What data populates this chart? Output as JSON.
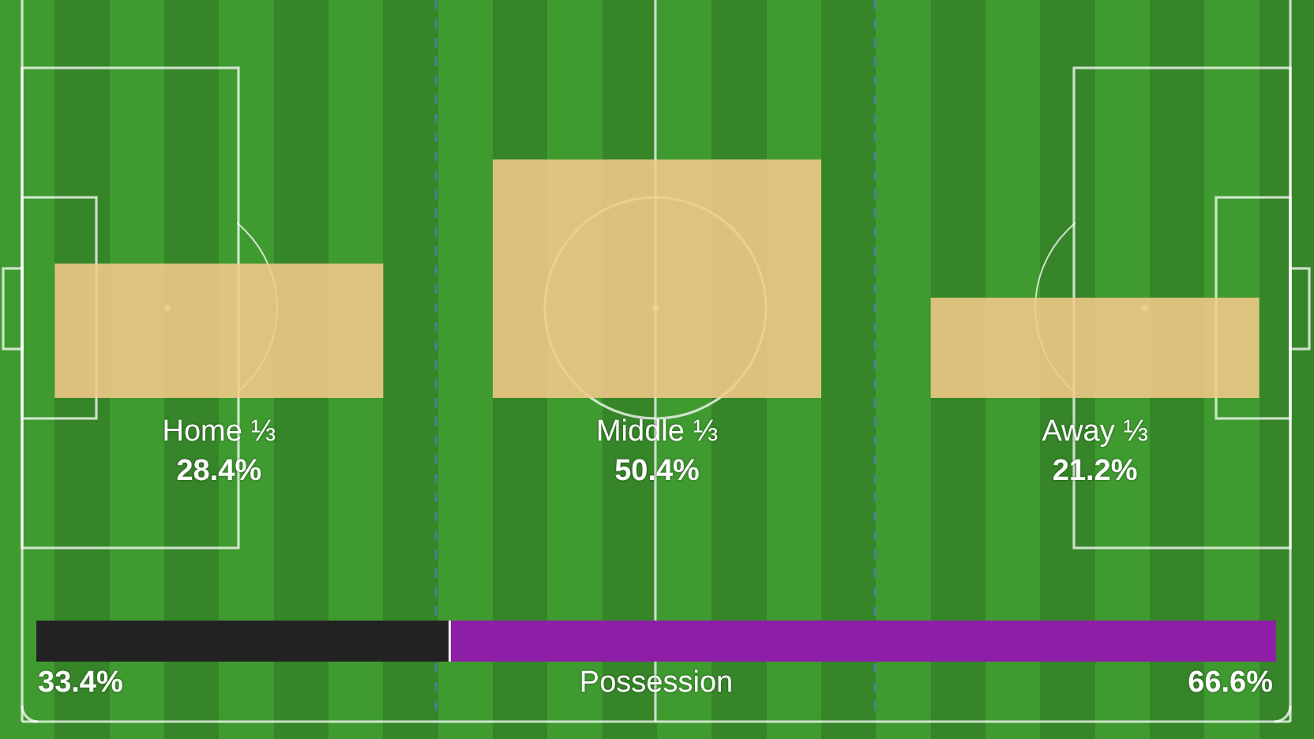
{
  "chart_data": [
    {
      "type": "bar",
      "categories": [
        "Home ⅓",
        "Middle ⅓",
        "Away ⅓"
      ],
      "values": [
        28.4,
        50.4,
        21.2
      ],
      "value_labels": [
        "28.4%",
        "50.4%",
        "21.2%"
      ],
      "color": "#dcc27e"
    },
    {
      "type": "bar",
      "orientation": "horizontal",
      "stacked": true,
      "categories": [
        null
      ],
      "xlabel": "Possession",
      "series": [
        {
          "color": "#222222",
          "values": [
            33.4
          ],
          "value_labels": [
            "33.4%"
          ]
        },
        {
          "color": "#8e1ea8",
          "values": [
            66.6
          ],
          "value_labels": [
            "66.6%"
          ]
        }
      ]
    }
  ]
}
